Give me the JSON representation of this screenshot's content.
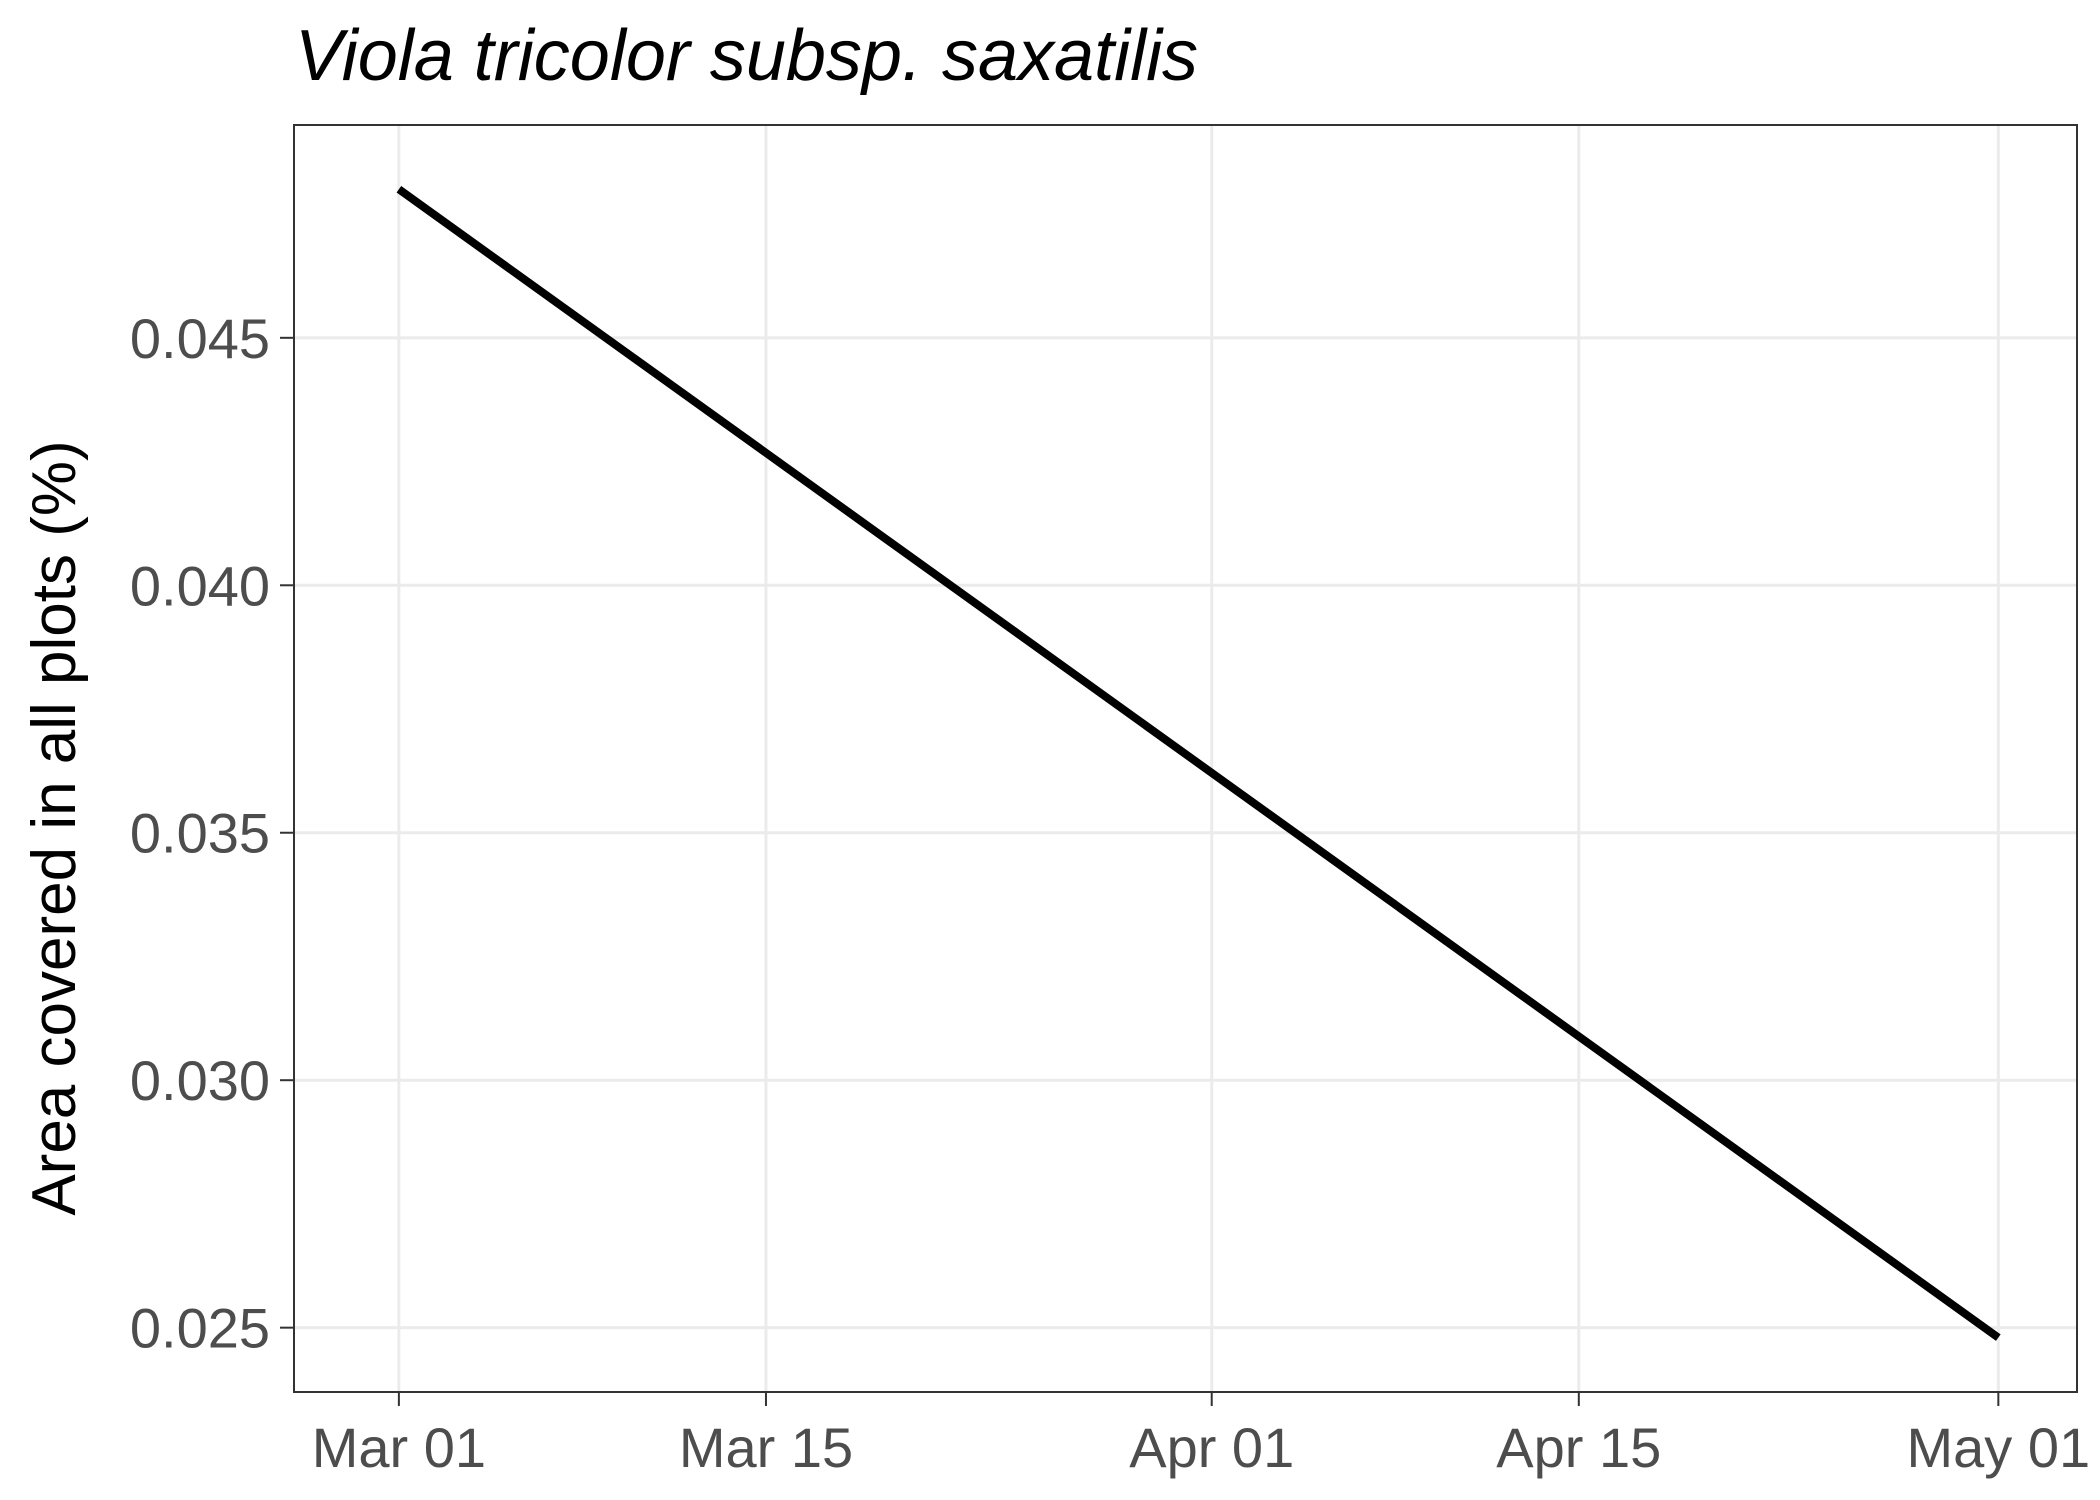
{
  "chart_data": {
    "type": "line",
    "title": "Viola tricolor subsp. saxatilis",
    "xlabel": "",
    "ylabel": "Area covered in all plots (%)",
    "x_ticks": [
      "Mar 01",
      "Mar 15",
      "Apr 01",
      "Apr 15",
      "May 01"
    ],
    "x_tick_dates": [
      "2000-03-01",
      "2000-03-15",
      "2000-04-01",
      "2000-04-15",
      "2000-05-01"
    ],
    "xlim": [
      "2000-02-26",
      "2000-05-04"
    ],
    "y_ticks": [
      "0.025",
      "0.030",
      "0.035",
      "0.040",
      "0.045"
    ],
    "ylim": [
      0.0237,
      0.0493
    ],
    "grid": true,
    "legend": "none",
    "line_color": "#000000",
    "series": [
      {
        "x": [
          "2000-03-01",
          "2000-05-01"
        ],
        "y": [
          0.048,
          0.0248
        ]
      }
    ]
  }
}
